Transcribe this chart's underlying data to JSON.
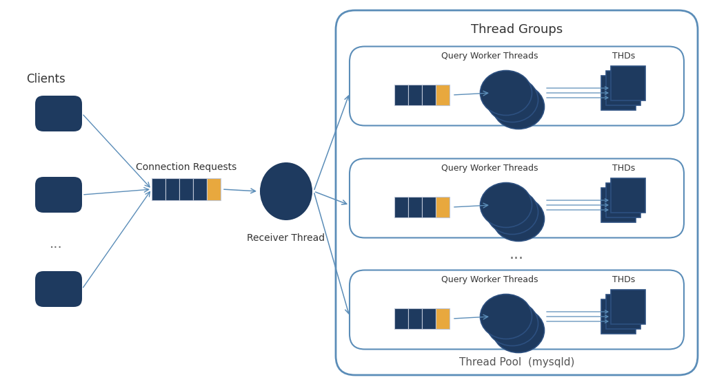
{
  "bg_color": "#ffffff",
  "dark_blue": "#1e3a5f",
  "medium_blue": "#2d5080",
  "border_blue": "#5b8db8",
  "gold": "#e8a83e",
  "text_color": "#333333",
  "title": "Thread Groups",
  "subtitle": "Thread Pool  (mysqld)",
  "clients_label": "Clients",
  "conn_req_label": "Connection Requests",
  "receiver_label": "Receiver Thread",
  "qwt_label": "Query Worker Threads",
  "thds_label": "THDs",
  "ellipsis": "..."
}
